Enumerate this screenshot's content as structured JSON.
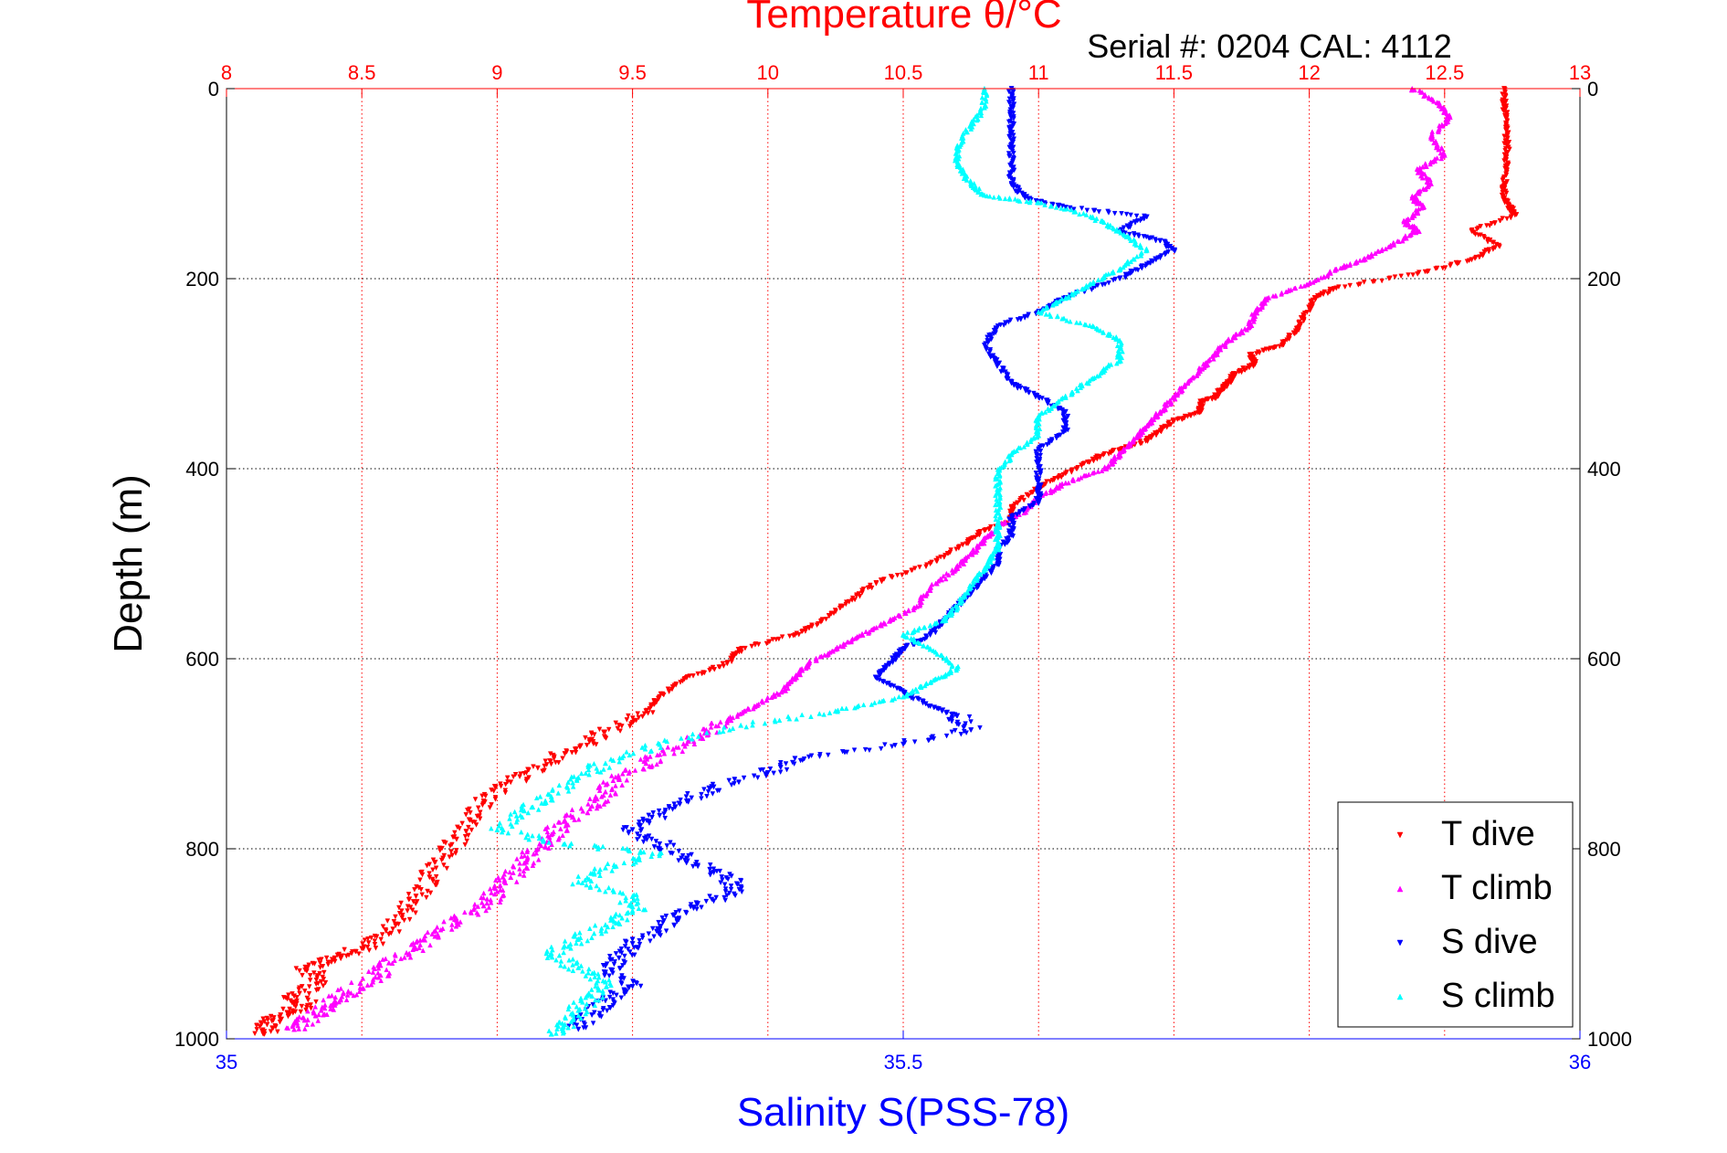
{
  "chart_data": {
    "type": "scatter",
    "title": "Temperature θ/°C",
    "subtitle": "Serial #: 0204  CAL: 4112",
    "xlabel_bottom": "Salinity S(PSS-78)",
    "ylabel": "Depth (m)",
    "y_axis": {
      "range": [
        0,
        1000
      ],
      "reversed": true,
      "ticks": [
        "0",
        "200",
        "400",
        "600",
        "800",
        "1000"
      ]
    },
    "x_axis_top": {
      "quantity": "temperature",
      "range": [
        8,
        13
      ],
      "ticks": [
        "8",
        "8.5",
        "9",
        "9.5",
        "10",
        "10.5",
        "11",
        "11.5",
        "12",
        "12.5",
        "13"
      ]
    },
    "x_axis_bottom": {
      "quantity": "salinity",
      "range": [
        35,
        36
      ],
      "ticks": [
        "35",
        "35.5",
        "36"
      ]
    },
    "grid": true,
    "legend_position": "bottom-right",
    "colors": {
      "title": "#ff0000",
      "top_axis": "#ff0000",
      "bottom_axis": "#0000ff",
      "grid_vertical": "#ff0000",
      "grid_horizontal": "#000000"
    },
    "series": [
      {
        "name": "T dive",
        "axis": "temperature",
        "color": "#ff0000",
        "marker": "triangle-down",
        "points": [
          [
            12.72,
            0
          ],
          [
            12.72,
            20
          ],
          [
            12.73,
            40
          ],
          [
            12.73,
            60
          ],
          [
            12.73,
            80
          ],
          [
            12.72,
            100
          ],
          [
            12.72,
            115
          ],
          [
            12.74,
            125
          ],
          [
            12.76,
            133
          ],
          [
            12.6,
            150
          ],
          [
            12.7,
            165
          ],
          [
            12.6,
            180
          ],
          [
            12.4,
            195
          ],
          [
            12.1,
            210
          ],
          [
            12.02,
            220
          ],
          [
            11.98,
            240
          ],
          [
            11.95,
            255
          ],
          [
            11.9,
            270
          ],
          [
            11.78,
            280
          ],
          [
            11.8,
            290
          ],
          [
            11.72,
            300
          ],
          [
            11.7,
            310
          ],
          [
            11.68,
            315
          ],
          [
            11.65,
            325
          ],
          [
            11.6,
            330
          ],
          [
            11.6,
            340
          ],
          [
            11.5,
            350
          ],
          [
            11.45,
            360
          ],
          [
            11.4,
            370
          ],
          [
            11.3,
            380
          ],
          [
            11.2,
            390
          ],
          [
            11.1,
            405
          ],
          [
            11.0,
            420
          ],
          [
            10.9,
            440
          ],
          [
            10.9,
            455
          ],
          [
            10.8,
            465
          ],
          [
            10.72,
            480
          ],
          [
            10.6,
            500
          ],
          [
            10.4,
            520
          ],
          [
            10.3,
            540
          ],
          [
            10.2,
            560
          ],
          [
            10.1,
            575
          ],
          [
            9.9,
            590
          ],
          [
            9.85,
            605
          ],
          [
            9.7,
            620
          ],
          [
            9.6,
            640
          ],
          [
            9.55,
            655
          ],
          [
            9.45,
            670
          ],
          [
            9.35,
            685
          ],
          [
            9.25,
            700
          ],
          [
            9.15,
            715
          ],
          [
            9.05,
            730
          ],
          [
            8.95,
            750
          ],
          [
            8.9,
            770
          ],
          [
            8.85,
            790
          ],
          [
            8.8,
            810
          ],
          [
            8.75,
            830
          ],
          [
            8.7,
            850
          ],
          [
            8.65,
            870
          ],
          [
            8.6,
            890
          ],
          [
            8.5,
            905
          ],
          [
            8.4,
            915
          ],
          [
            8.3,
            925
          ],
          [
            8.35,
            940
          ],
          [
            8.25,
            955
          ],
          [
            8.3,
            965
          ],
          [
            8.2,
            975
          ],
          [
            8.15,
            985
          ],
          [
            8.14,
            995
          ]
        ]
      },
      {
        "name": "T climb",
        "axis": "temperature",
        "color": "#ff00ff",
        "marker": "triangle-up",
        "points": [
          [
            12.38,
            0
          ],
          [
            12.48,
            15
          ],
          [
            12.52,
            30
          ],
          [
            12.45,
            50
          ],
          [
            12.5,
            70
          ],
          [
            12.4,
            85
          ],
          [
            12.45,
            100
          ],
          [
            12.38,
            115
          ],
          [
            12.42,
            125
          ],
          [
            12.35,
            140
          ],
          [
            12.4,
            150
          ],
          [
            12.3,
            165
          ],
          [
            12.2,
            180
          ],
          [
            12.1,
            190
          ],
          [
            12.0,
            205
          ],
          [
            11.85,
            220
          ],
          [
            11.8,
            235
          ],
          [
            11.78,
            250
          ],
          [
            11.7,
            265
          ],
          [
            11.65,
            280
          ],
          [
            11.6,
            295
          ],
          [
            11.55,
            310
          ],
          [
            11.5,
            325
          ],
          [
            11.45,
            340
          ],
          [
            11.4,
            355
          ],
          [
            11.35,
            370
          ],
          [
            11.3,
            385
          ],
          [
            11.25,
            400
          ],
          [
            11.1,
            415
          ],
          [
            11.0,
            430
          ],
          [
            10.95,
            445
          ],
          [
            10.85,
            460
          ],
          [
            10.8,
            475
          ],
          [
            10.75,
            490
          ],
          [
            10.7,
            505
          ],
          [
            10.6,
            525
          ],
          [
            10.55,
            545
          ],
          [
            10.45,
            560
          ],
          [
            10.35,
            575
          ],
          [
            10.25,
            590
          ],
          [
            10.15,
            605
          ],
          [
            10.1,
            620
          ],
          [
            10.05,
            635
          ],
          [
            9.95,
            650
          ],
          [
            9.85,
            665
          ],
          [
            9.75,
            680
          ],
          [
            9.65,
            695
          ],
          [
            9.55,
            710
          ],
          [
            9.45,
            725
          ],
          [
            9.4,
            740
          ],
          [
            9.35,
            755
          ],
          [
            9.25,
            770
          ],
          [
            9.2,
            785
          ],
          [
            9.15,
            800
          ],
          [
            9.1,
            815
          ],
          [
            9.05,
            830
          ],
          [
            9.0,
            845
          ],
          [
            8.95,
            860
          ],
          [
            8.85,
            875
          ],
          [
            8.78,
            890
          ],
          [
            8.7,
            905
          ],
          [
            8.6,
            920
          ],
          [
            8.55,
            935
          ],
          [
            8.45,
            950
          ],
          [
            8.4,
            960
          ],
          [
            8.35,
            970
          ],
          [
            8.3,
            980
          ],
          [
            8.25,
            990
          ]
        ]
      },
      {
        "name": "S dive",
        "axis": "salinity",
        "color": "#0000ff",
        "marker": "triangle-down",
        "points": [
          [
            35.58,
            0
          ],
          [
            35.58,
            20
          ],
          [
            35.58,
            40
          ],
          [
            35.58,
            60
          ],
          [
            35.58,
            80
          ],
          [
            35.58,
            100
          ],
          [
            35.59,
            115
          ],
          [
            35.62,
            125
          ],
          [
            35.68,
            135
          ],
          [
            35.66,
            150
          ],
          [
            35.69,
            160
          ],
          [
            35.7,
            170
          ],
          [
            35.68,
            185
          ],
          [
            35.66,
            200
          ],
          [
            35.62,
            220
          ],
          [
            35.6,
            235
          ],
          [
            35.57,
            250
          ],
          [
            35.56,
            270
          ],
          [
            35.57,
            290
          ],
          [
            35.58,
            310
          ],
          [
            35.6,
            325
          ],
          [
            35.62,
            340
          ],
          [
            35.62,
            360
          ],
          [
            35.6,
            380
          ],
          [
            35.6,
            400
          ],
          [
            35.6,
            420
          ],
          [
            35.6,
            435
          ],
          [
            35.58,
            450
          ],
          [
            35.58,
            470
          ],
          [
            35.57,
            485
          ],
          [
            35.57,
            500
          ],
          [
            35.56,
            515
          ],
          [
            35.55,
            530
          ],
          [
            35.54,
            545
          ],
          [
            35.53,
            560
          ],
          [
            35.52,
            575
          ],
          [
            35.5,
            590
          ],
          [
            35.49,
            605
          ],
          [
            35.48,
            620
          ],
          [
            35.5,
            635
          ],
          [
            35.52,
            650
          ],
          [
            35.54,
            660
          ],
          [
            35.55,
            675
          ],
          [
            35.5,
            690
          ],
          [
            35.42,
            705
          ],
          [
            35.4,
            720
          ],
          [
            35.36,
            735
          ],
          [
            35.34,
            750
          ],
          [
            35.32,
            765
          ],
          [
            35.3,
            780
          ],
          [
            35.32,
            795
          ],
          [
            35.34,
            810
          ],
          [
            35.36,
            825
          ],
          [
            35.38,
            840
          ],
          [
            35.36,
            855
          ],
          [
            35.33,
            870
          ],
          [
            35.32,
            885
          ],
          [
            35.3,
            900
          ],
          [
            35.29,
            915
          ],
          [
            35.28,
            930
          ],
          [
            35.3,
            945
          ],
          [
            35.28,
            960
          ],
          [
            35.27,
            975
          ],
          [
            35.26,
            990
          ]
        ]
      },
      {
        "name": "S climb",
        "axis": "salinity",
        "color": "#00ffff",
        "marker": "triangle-up",
        "points": [
          [
            35.56,
            0
          ],
          [
            35.56,
            20
          ],
          [
            35.55,
            40
          ],
          [
            35.54,
            60
          ],
          [
            35.54,
            80
          ],
          [
            35.55,
            100
          ],
          [
            35.56,
            112
          ],
          [
            35.6,
            120
          ],
          [
            35.64,
            135
          ],
          [
            35.66,
            150
          ],
          [
            35.68,
            170
          ],
          [
            35.66,
            190
          ],
          [
            35.64,
            205
          ],
          [
            35.62,
            220
          ],
          [
            35.6,
            235
          ],
          [
            35.64,
            250
          ],
          [
            35.66,
            265
          ],
          [
            35.66,
            285
          ],
          [
            35.64,
            305
          ],
          [
            35.62,
            325
          ],
          [
            35.6,
            345
          ],
          [
            35.6,
            365
          ],
          [
            35.58,
            385
          ],
          [
            35.57,
            405
          ],
          [
            35.57,
            425
          ],
          [
            35.57,
            445
          ],
          [
            35.57,
            465
          ],
          [
            35.57,
            485
          ],
          [
            35.56,
            505
          ],
          [
            35.55,
            525
          ],
          [
            35.54,
            545
          ],
          [
            35.53,
            560
          ],
          [
            35.5,
            575
          ],
          [
            35.52,
            590
          ],
          [
            35.54,
            610
          ],
          [
            35.52,
            625
          ],
          [
            35.5,
            640
          ],
          [
            35.45,
            655
          ],
          [
            35.38,
            670
          ],
          [
            35.32,
            690
          ],
          [
            35.28,
            710
          ],
          [
            35.26,
            725
          ],
          [
            35.24,
            745
          ],
          [
            35.22,
            760
          ],
          [
            35.2,
            780
          ],
          [
            35.25,
            795
          ],
          [
            35.32,
            805
          ],
          [
            35.28,
            820
          ],
          [
            35.26,
            835
          ],
          [
            35.3,
            850
          ],
          [
            35.3,
            865
          ],
          [
            35.28,
            880
          ],
          [
            35.26,
            895
          ],
          [
            35.24,
            910
          ],
          [
            35.26,
            925
          ],
          [
            35.28,
            940
          ],
          [
            35.27,
            955
          ],
          [
            35.26,
            970
          ],
          [
            35.25,
            985
          ],
          [
            35.24,
            995
          ]
        ]
      }
    ]
  }
}
